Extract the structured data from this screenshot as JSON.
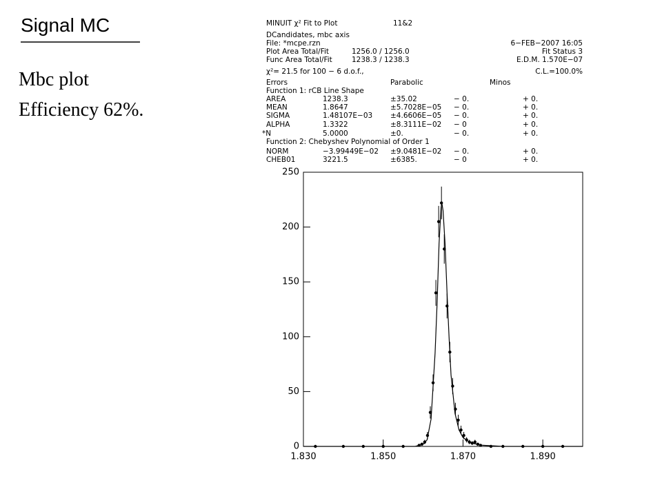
{
  "slide": {
    "title": "Signal MC",
    "bullets": [
      "Mbc plot",
      "Efficiency 62%."
    ]
  },
  "fit_box": {
    "rows": [
      [
        "MINUIT χ² Fit to Plot",
        "11&2"
      ],
      [
        "DCandidates, mbc axis"
      ],
      [
        "File: *mcpe.rzn",
        "6−FEB−2007 16:05"
      ],
      [
        "Plot Area Total/Fit",
        "1256.0 / 1256.0",
        "Fit Status  3"
      ],
      [
        "Func Area Total/Fit",
        "1238.3 / 1238.3",
        "E.D.M. 1.570E−07"
      ],
      [
        "χ²=    21.5 for 100 −   6 d.o.f.,",
        "C.L.=100.0%"
      ],
      [
        "Errors",
        "Parabolic",
        "Minos"
      ],
      [
        "Function  1:  rCB Line Shape"
      ],
      [
        "AREA",
        "1238.3",
        "±35.02",
        "− 0.",
        "+ 0."
      ],
      [
        "MEAN",
        "1.8647",
        "±5.7028E−05",
        "− 0.",
        "+ 0."
      ],
      [
        "SIGMA",
        "1.48107E−03",
        "±4.6606E−05",
        "− 0.",
        "+ 0."
      ],
      [
        "ALPHA",
        "1.3322",
        "±8.3111E−02",
        "− 0",
        "+ 0."
      ],
      [
        "*N",
        "5.0000",
        "±0.",
        "− 0.",
        "+ 0."
      ],
      [
        "Function  2:  Chebyshev Polynomial of Order 1"
      ],
      [
        "NORM",
        "−3.99449E−02",
        "±9.0481E−02",
        "− 0.",
        "+ 0."
      ],
      [
        "CHEB01",
        "3221.5",
        "±6385.",
        "− 0",
        "+ 0."
      ]
    ]
  },
  "chart_data": {
    "type": "scatter",
    "xlim": [
      1.83,
      1.9
    ],
    "ylim": [
      0,
      250
    ],
    "xticks": [
      {
        "value": 1.83,
        "label": "1.830"
      },
      {
        "value": 1.85,
        "label": "1.850"
      },
      {
        "value": 1.87,
        "label": "1.870"
      },
      {
        "value": 1.89,
        "label": "1.890"
      }
    ],
    "yticks": [
      0,
      50,
      100,
      150,
      200,
      250
    ],
    "series": [
      {
        "type": "scatter",
        "color": "#000000",
        "x": [
          1.833,
          1.84,
          1.845,
          1.85,
          1.855,
          1.859,
          1.8597,
          1.8604,
          1.8611,
          1.8618,
          1.8625,
          1.8632,
          1.8639,
          1.8646,
          1.8653,
          1.866,
          1.8667,
          1.8674,
          1.8681,
          1.8688,
          1.8695,
          1.8702,
          1.8709,
          1.8716,
          1.8723,
          1.873,
          1.8737,
          1.8744,
          1.877,
          1.88,
          1.885,
          1.89,
          1.895
        ],
        "values": [
          0,
          0,
          0,
          0,
          0,
          1,
          2,
          4,
          10,
          31,
          58,
          140,
          205,
          222,
          180,
          128,
          86,
          55,
          34,
          24,
          15,
          10,
          6,
          4,
          3,
          4,
          2,
          1,
          0,
          0,
          0,
          0,
          0
        ],
        "errors": [
          0,
          0,
          0,
          0,
          0,
          1,
          1.4,
          2,
          3.2,
          5.6,
          7.6,
          11.8,
          14.3,
          14.9,
          13.4,
          11.3,
          9.3,
          7.4,
          5.8,
          4.9,
          3.9,
          3.2,
          2.4,
          2,
          1.7,
          2,
          1.4,
          1,
          0,
          0,
          0,
          0,
          0
        ]
      },
      {
        "type": "line",
        "color": "#000000",
        "x": [
          1.83,
          1.858,
          1.86,
          1.861,
          1.862,
          1.863,
          1.8635,
          1.864,
          1.8645,
          1.8647,
          1.865,
          1.8655,
          1.866,
          1.8665,
          1.867,
          1.868,
          1.869,
          1.87,
          1.872,
          1.875,
          1.88,
          1.9
        ],
        "values": [
          0,
          0,
          2,
          6,
          25,
          85,
          130,
          185,
          218,
          222,
          215,
          185,
          140,
          100,
          65,
          30,
          15,
          8,
          3,
          1,
          0,
          0
        ]
      }
    ]
  }
}
